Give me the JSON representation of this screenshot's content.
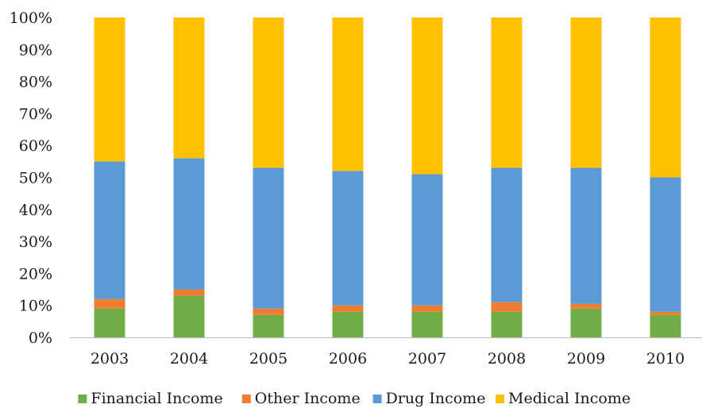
{
  "chart_data": {
    "type": "bar",
    "stacked": true,
    "percent_stacked": true,
    "categories": [
      "2003",
      "2004",
      "2005",
      "2006",
      "2007",
      "2008",
      "2009",
      "2010"
    ],
    "series": [
      {
        "name": "Financial Income",
        "color": "#70ad47",
        "values": [
          9,
          13,
          7,
          8,
          8,
          8,
          9,
          7
        ]
      },
      {
        "name": "Other Income",
        "color": "#ed7d31",
        "values": [
          3,
          2,
          2,
          2,
          2,
          3,
          1.5,
          1
        ]
      },
      {
        "name": "Drug Income",
        "color": "#5b9bd5",
        "values": [
          43,
          41,
          44,
          42,
          41,
          42,
          42.5,
          42
        ]
      },
      {
        "name": "Medical Income",
        "color": "#ffc000",
        "values": [
          45,
          44,
          47,
          48,
          49,
          47,
          47,
          50
        ]
      }
    ],
    "ylim": [
      0,
      100
    ],
    "yticks": [
      "0%",
      "10%",
      "20%",
      "30%",
      "40%",
      "50%",
      "60%",
      "70%",
      "80%",
      "90%",
      "100%"
    ],
    "legend_position": "bottom",
    "grid": false,
    "title": "",
    "xlabel": "",
    "ylabel": ""
  }
}
